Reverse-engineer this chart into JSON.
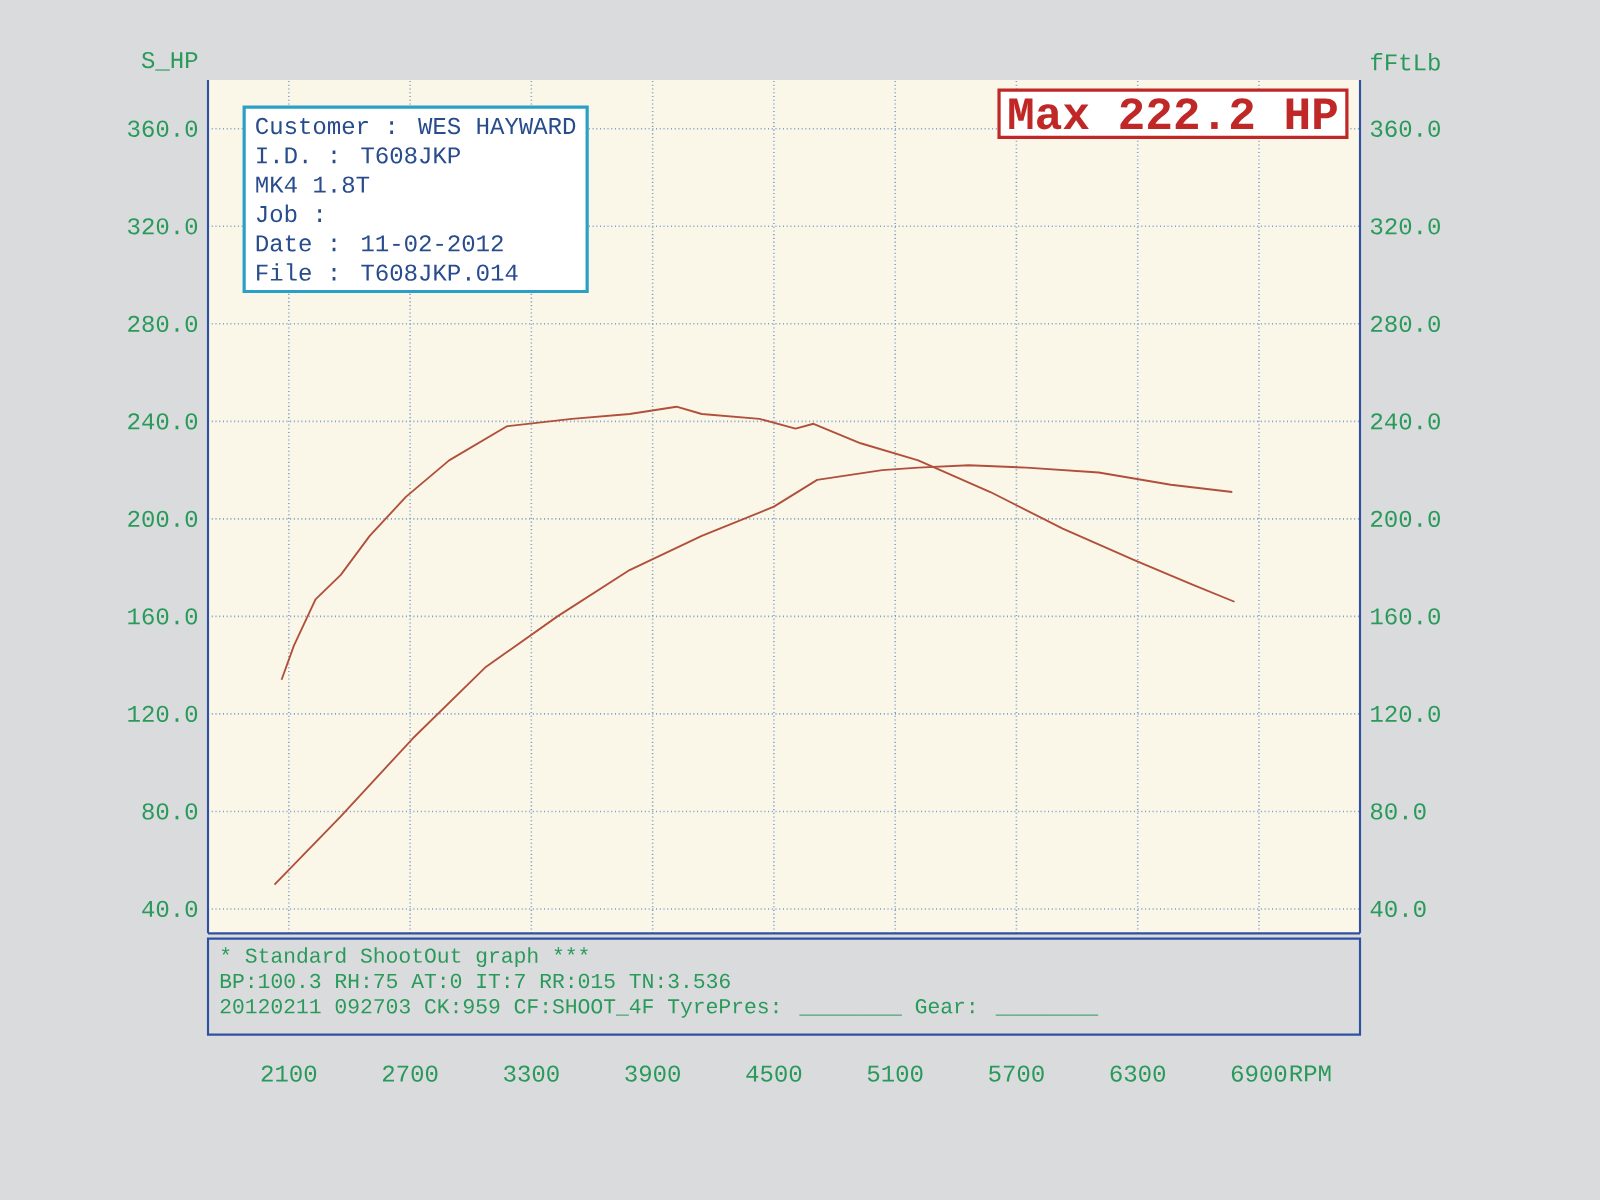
{
  "chart_data": {
    "type": "line",
    "title": "Max 222.2 HP",
    "xlabel": "RPM",
    "ylabel": "S_HP",
    "y2label": "fFtLb",
    "annotations": [
      "Customer : WES HAYWARD",
      "I.D. : T608JKP",
      "MK4 1.8T",
      "Job :",
      "Date : 11-02-2012",
      "File : T608JKP.014",
      "* Standard ShootOut graph ***",
      "BP:100.3 RH:75 AT:0 IT:7 RR:015 TN:3.536",
      "20120211 092703 CK:959 CF:SHOOT_4F TyrePres: ________ Gear: ________"
    ],
    "xlim": [
      1700,
      7400
    ],
    "ylim": [
      30,
      380
    ],
    "y2lim": [
      30,
      380
    ],
    "xticks": [
      2100,
      2700,
      3300,
      3900,
      4500,
      5100,
      5700,
      6300,
      6900
    ],
    "yticks": [
      {
        "value": 40,
        "label": "40.0"
      },
      {
        "value": 80,
        "label": "80.0"
      },
      {
        "value": 120,
        "label": "120.0"
      },
      {
        "value": 160,
        "label": "160.0"
      },
      {
        "value": 200,
        "label": "200.0"
      },
      {
        "value": 240,
        "label": "240.0"
      },
      {
        "value": 280,
        "label": "280.0"
      },
      {
        "value": 320,
        "label": "320.0"
      },
      {
        "value": 360,
        "label": "360.0"
      }
    ],
    "y2ticks": [
      {
        "value": 40,
        "label": "40.0"
      },
      {
        "value": 80,
        "label": "80.0"
      },
      {
        "value": 120,
        "label": "120.0"
      },
      {
        "value": 160,
        "label": "160.0"
      },
      {
        "value": 200,
        "label": "200.0"
      },
      {
        "value": 240,
        "label": "240.0"
      },
      {
        "value": 280,
        "label": "280.0"
      },
      {
        "value": 320,
        "label": "320.0"
      },
      {
        "value": 360,
        "label": "360.0"
      }
    ],
    "grid": true,
    "series": [
      {
        "color": "#b0503c",
        "x": [
          2029,
          2357,
          2714,
          3071,
          3429,
          3786,
          4143,
          4500,
          4714,
          5036,
          5214,
          5464,
          5750,
          6107,
          6464,
          6768
        ],
        "values": [
          50,
          78,
          110,
          139,
          160,
          179,
          193,
          205,
          216,
          220,
          221,
          222,
          221,
          219,
          214,
          211
        ]
      },
      {
        "color": "#b0503c",
        "axis": "y2",
        "x": [
          2064,
          2125,
          2232,
          2357,
          2500,
          2679,
          2893,
          3179,
          3500,
          3786,
          4018,
          4143,
          4429,
          4607,
          4696,
          4929,
          5214,
          5571,
          5929,
          6286,
          6571,
          6779
        ],
        "values": [
          134,
          148,
          167,
          177,
          193,
          209,
          224,
          238,
          241,
          243,
          246,
          243,
          241,
          237,
          239,
          231,
          224,
          211,
          196,
          183,
          173,
          166
        ]
      }
    ]
  }
}
